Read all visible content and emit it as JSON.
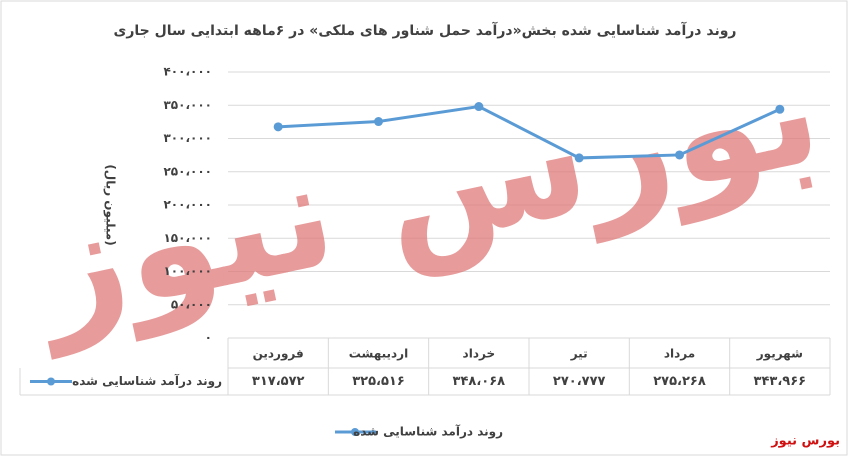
{
  "chart_data": {
    "type": "line",
    "title": "روند درآمد شناسایی شده بخش«درآمد حمل شناور های ملکی» در ۶ماهه ابتدایی سال جاری",
    "y_label": "(میلیون ریال)",
    "categories": [
      "فروردین",
      "اردیبهشت",
      "خرداد",
      "تیر",
      "مرداد",
      "شهریور"
    ],
    "series": [
      {
        "name": "روند درآمد شناسایی شده",
        "color": "#5b9bd5",
        "values": [
          317572,
          325516,
          348068,
          270777,
          275268,
          343966
        ],
        "value_labels": [
          "۳۱۷،۵۷۲",
          "۳۲۵،۵۱۶",
          "۳۴۸،۰۶۸",
          "۲۷۰،۷۷۷",
          "۲۷۵،۲۶۸",
          "۳۴۳،۹۶۶"
        ]
      }
    ],
    "ylim": [
      0,
      400000
    ],
    "yticks": [
      {
        "value": 0,
        "label": "۰"
      },
      {
        "value": 50000,
        "label": "۵۰،۰۰۰"
      },
      {
        "value": 100000,
        "label": "۱۰۰،۰۰۰"
      },
      {
        "value": 150000,
        "label": "۱۵۰،۰۰۰"
      },
      {
        "value": 200000,
        "label": "۲۰۰،۰۰۰"
      },
      {
        "value": 250000,
        "label": "۲۵۰،۰۰۰"
      },
      {
        "value": 300000,
        "label": "۳۰۰،۰۰۰"
      },
      {
        "value": 350000,
        "label": "۳۵۰،۰۰۰"
      },
      {
        "value": 400000,
        "label": "۴۰۰،۰۰۰"
      }
    ],
    "grid": true,
    "legend": "bottom",
    "watermark": "بورس نیوز",
    "brand": "بورس نیوز"
  }
}
